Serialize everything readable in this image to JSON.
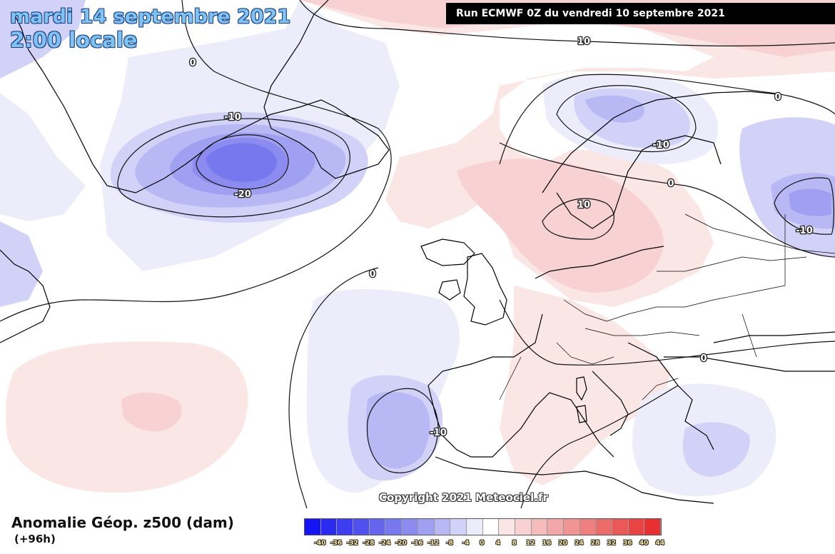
{
  "header": {
    "date": "mardi 14 septembre 2021",
    "time": "2:00 locale",
    "run": "Run ECMWF 0Z du vendredi 10 septembre 2021"
  },
  "copyright": "Copyright 2021 Meteociel.fr",
  "legend": {
    "title": "Anomalie Géop. z500 (dam)",
    "forecast": "(+96h)",
    "ticks": [
      "-40",
      "-36",
      "-32",
      "-28",
      "-24",
      "-20",
      "-16",
      "-12",
      "-8",
      "-4",
      "0",
      "4",
      "8",
      "12",
      "16",
      "20",
      "24",
      "28",
      "32",
      "36",
      "40",
      "44"
    ],
    "colors": [
      "#1414f5",
      "#2a2af0",
      "#3e3ef0",
      "#5050ee",
      "#6464ee",
      "#7878ee",
      "#8c8cf0",
      "#a0a0f2",
      "#b8b8f5",
      "#d2d2f8",
      "#ececfb",
      "#ffffff",
      "#fbe6e6",
      "#f8d2d2",
      "#f5bcbc",
      "#f2a8a8",
      "#f09494",
      "#ee8080",
      "#ec6c6c",
      "#ea5858",
      "#e84444",
      "#e83030"
    ]
  },
  "contour_labels": {
    "c1": "0",
    "c2": "-10",
    "c3": "-20",
    "c4": "10",
    "c5": "0",
    "c6": "-10",
    "c7": "0",
    "c8": "10",
    "c9": "-10",
    "c10": "0",
    "c11": "0",
    "c12": "-10"
  }
}
